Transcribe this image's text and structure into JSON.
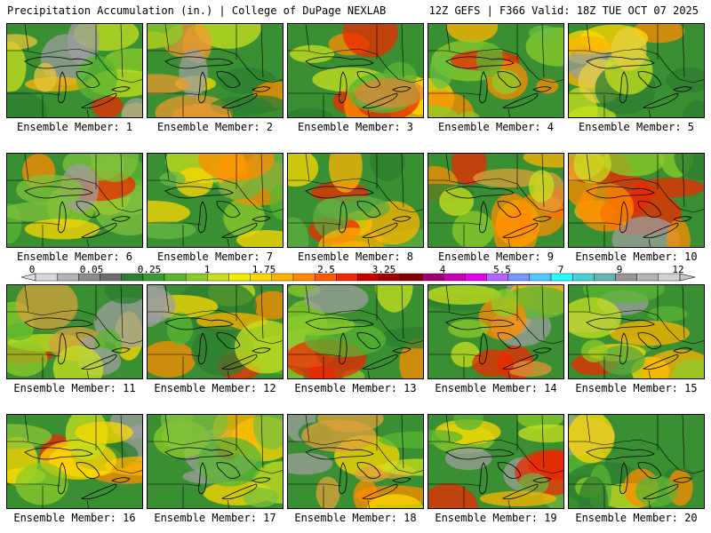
{
  "header": {
    "title": "Precipitation Accumulation (in.) | College of DuPage NEXLAB",
    "run": "12Z GEFS | F366 Valid: 18Z TUE OCT 07 2025"
  },
  "colorbar": {
    "tick_labels": [
      "0",
      "0.05",
      "0.25",
      "1",
      "1.75",
      "2.5",
      "3.25",
      "4",
      "5.5",
      "7",
      "9",
      "12"
    ],
    "colors": [
      "#d8d8d8",
      "#b4b4b4",
      "#8c8c8c",
      "#6e6e6e",
      "#2e7d32",
      "#3a9a34",
      "#5ab532",
      "#8ccc2a",
      "#c8e01e",
      "#f0f000",
      "#ffd800",
      "#ffb400",
      "#ff8c00",
      "#ff5a00",
      "#ee2800",
      "#c80000",
      "#a00000",
      "#800000",
      "#a0006e",
      "#c800b4",
      "#e800f0",
      "#b464ff",
      "#7896ff",
      "#50c8ff",
      "#28ffff",
      "#46d2d2",
      "#64b4b4",
      "#969696",
      "#b4b4b4",
      "#d2d2d2"
    ]
  },
  "members": [
    {
      "label": "Ensemble Member: 1",
      "tone": "#e8c53a"
    },
    {
      "label": "Ensemble Member: 2",
      "tone": "#e89a30"
    },
    {
      "label": "Ensemble Member: 3",
      "tone": "#d98a35"
    },
    {
      "label": "Ensemble Member: 4",
      "tone": "#6cbf40"
    },
    {
      "label": "Ensemble Member: 5",
      "tone": "#e8d040"
    },
    {
      "label": "Ensemble Member: 6",
      "tone": "#7fc23c"
    },
    {
      "label": "Ensemble Member: 7",
      "tone": "#69b846"
    },
    {
      "label": "Ensemble Member: 8",
      "tone": "#5fae42"
    },
    {
      "label": "Ensemble Member: 9",
      "tone": "#e0a03a"
    },
    {
      "label": "Ensemble Member: 10",
      "tone": "#e8b338"
    },
    {
      "label": "Ensemble Member: 11",
      "tone": "#d6a23c"
    },
    {
      "label": "Ensemble Member: 12",
      "tone": "#58a83e"
    },
    {
      "label": "Ensemble Member: 13",
      "tone": "#bcd04a"
    },
    {
      "label": "Ensemble Member: 14",
      "tone": "#e39436"
    },
    {
      "label": "Ensemble Member: 15",
      "tone": "#5ca83e"
    },
    {
      "label": "Ensemble Member: 16",
      "tone": "#8cc63a"
    },
    {
      "label": "Ensemble Member: 17",
      "tone": "#7cbd3e"
    },
    {
      "label": "Ensemble Member: 18",
      "tone": "#e0a13a"
    },
    {
      "label": "Ensemble Member: 19",
      "tone": "#6cb642"
    },
    {
      "label": "Ensemble Member: 20",
      "tone": "#6ab23e"
    }
  ]
}
